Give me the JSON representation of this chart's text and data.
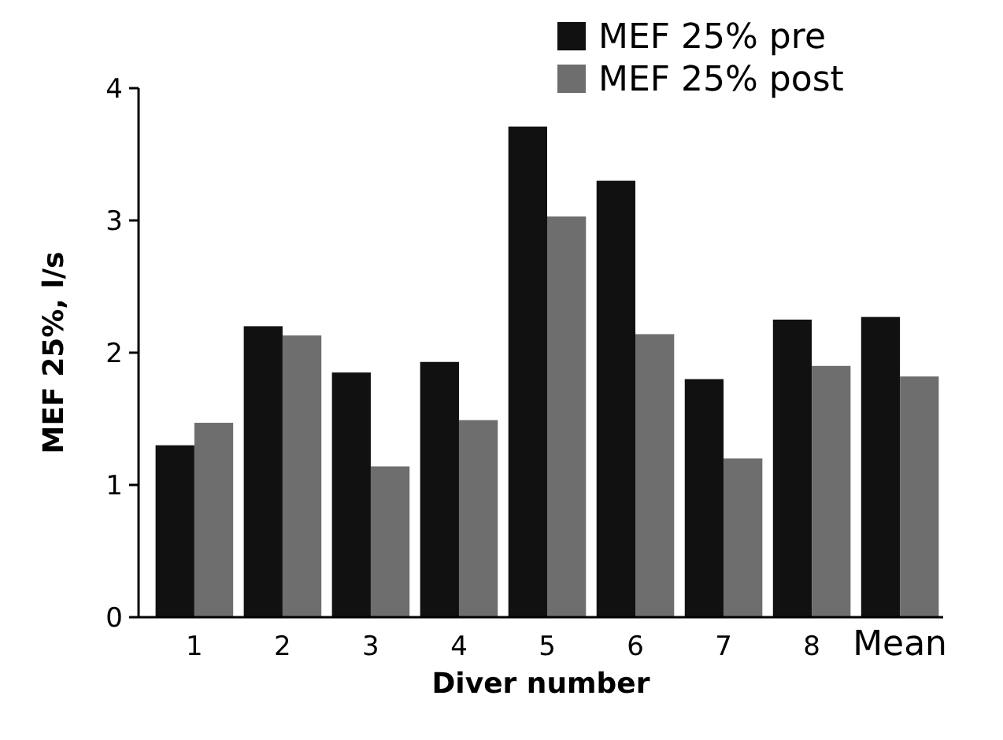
{
  "chart_data": {
    "type": "bar",
    "xlabel": "Diver number",
    "ylabel": "MEF 25%, l/s",
    "categories": [
      "1",
      "2",
      "3",
      "4",
      "5",
      "6",
      "7",
      "8",
      "Mean"
    ],
    "series": [
      {
        "name": "MEF 25% pre",
        "color": "#111111",
        "values": [
          1.3,
          2.2,
          1.85,
          1.93,
          3.71,
          3.3,
          1.8,
          2.25,
          2.27
        ]
      },
      {
        "name": "MEF 25% post",
        "color": "#6e6e6e",
        "values": [
          1.47,
          2.13,
          1.14,
          1.49,
          3.03,
          2.14,
          1.2,
          1.9,
          1.82
        ]
      }
    ],
    "ylim": [
      0,
      4
    ],
    "yticks": [
      0,
      1,
      2,
      3,
      4
    ],
    "grid": false,
    "legend": "top right"
  }
}
